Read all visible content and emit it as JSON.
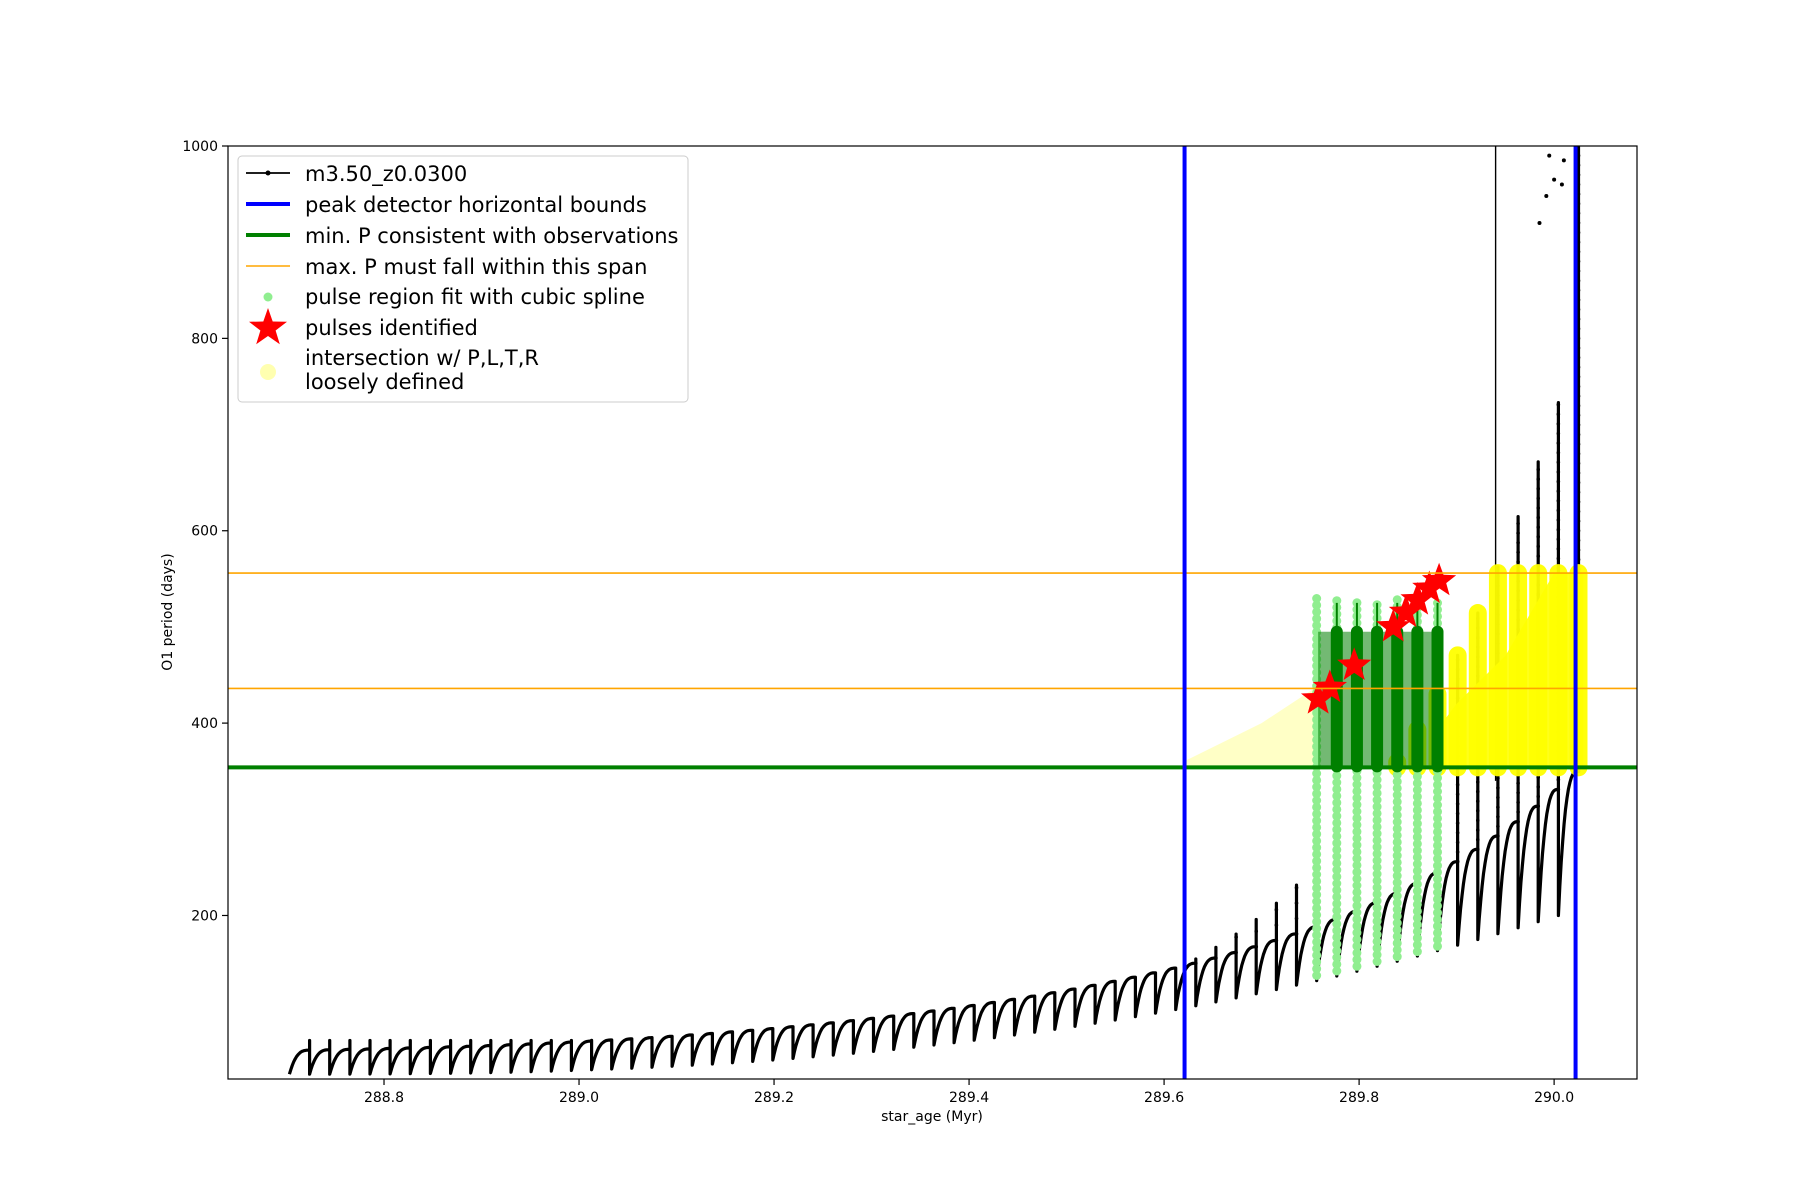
{
  "chart_data": {
    "type": "line",
    "title": "",
    "xlabel": "star_age (Myr)",
    "ylabel": "O1 period (days)",
    "xlim": [
      288.64,
      290.085
    ],
    "ylim": [
      30,
      1000
    ],
    "x_ticks": [
      288.8,
      289.0,
      289.2,
      289.4,
      289.6,
      289.8,
      290.0
    ],
    "x_tick_labels": [
      "288.8",
      "289.0",
      "289.2",
      "289.4",
      "289.6",
      "289.8",
      "290.0"
    ],
    "y_ticks": [
      200,
      400,
      600,
      800,
      1000
    ],
    "y_tick_labels": [
      "200",
      "400",
      "600",
      "800",
      "1000"
    ],
    "grid": false,
    "legend_position": "top-left",
    "legend": [
      {
        "label": "m3.50_z0.0300",
        "kind": "line-marker",
        "color": "#000000"
      },
      {
        "label": "peak detector horizontal bounds",
        "kind": "line",
        "color": "#0000ff"
      },
      {
        "label": "min. P consistent with observations",
        "kind": "line",
        "color": "#008000"
      },
      {
        "label": "max. P must fall within this span",
        "kind": "line",
        "color": "#ffa500"
      },
      {
        "label": "pulse region fit with cubic spline",
        "kind": "dot",
        "color": "#90ee90"
      },
      {
        "label": "pulses identified",
        "kind": "star",
        "color": "#ff0000"
      },
      {
        "label": [
          "intersection w/ P,L,T,R",
          "loosely defined"
        ],
        "kind": "big-dot",
        "color": "#ffffb0"
      }
    ],
    "series": [
      {
        "name": "m3.50_z0.0300",
        "color": "#000000",
        "x_start": 288.703,
        "x_end": 290.025,
        "cycles": 64,
        "base_min_start": 35,
        "base_min_end": 200,
        "peak_start": 70,
        "peak_end": 800
      }
    ],
    "vertical_lines": {
      "name": "peak detector horizontal bounds",
      "color": "#0000ff",
      "x": [
        289.621,
        290.022
      ]
    },
    "min_period_line": {
      "name": "min. P consistent with observations",
      "color": "#008000",
      "y": 354
    },
    "max_period_span": {
      "name": "max. P must fall within this span",
      "color": "#ffa500",
      "y": [
        436,
        556
      ]
    },
    "pulses_identified": {
      "color": "#ff0000",
      "points": [
        {
          "x": 289.758,
          "y": 425
        },
        {
          "x": 289.77,
          "y": 437
        },
        {
          "x": 289.795,
          "y": 460
        },
        {
          "x": 289.835,
          "y": 500
        },
        {
          "x": 289.848,
          "y": 515
        },
        {
          "x": 289.86,
          "y": 528
        },
        {
          "x": 289.872,
          "y": 540
        },
        {
          "x": 289.882,
          "y": 548
        }
      ]
    },
    "spline_region": {
      "color": "#90ee90",
      "x_range": [
        289.755,
        289.885
      ]
    },
    "green_fit_blocks": {
      "color": "#008000",
      "x_range": [
        289.758,
        289.883
      ],
      "y_range": [
        355,
        495
      ]
    },
    "yellow_intersection": {
      "color": "#ffff00",
      "x_range": [
        289.62,
        290.03
      ],
      "y_range": [
        354,
        556
      ]
    },
    "extra_vertical_line": {
      "x": 289.94,
      "y_range": [
        340,
        1000
      ],
      "color": "#000000"
    }
  }
}
